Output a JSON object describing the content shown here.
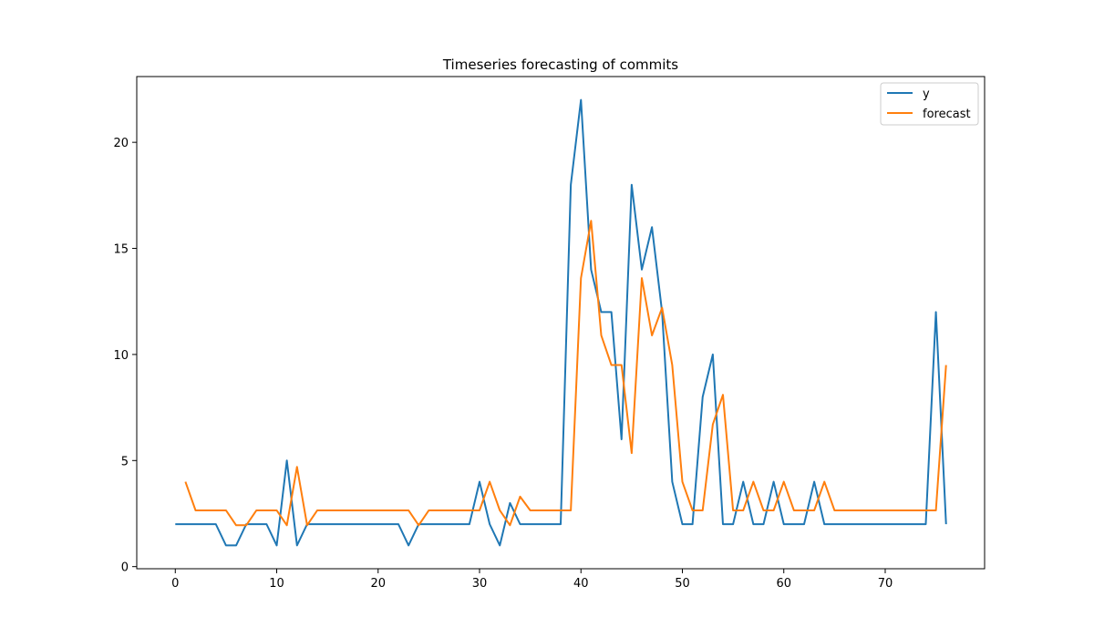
{
  "chart_data": {
    "type": "line",
    "title": "Timeseries forecasting of commits",
    "xlabel": "",
    "ylabel": "",
    "xlim": [
      -3.8,
      79.8
    ],
    "ylim": [
      -0.1,
      23.1
    ],
    "xticks": [
      0,
      10,
      20,
      30,
      40,
      50,
      60,
      70
    ],
    "yticks": [
      0,
      5,
      10,
      15,
      20
    ],
    "grid": false,
    "legend": "top-right",
    "series": [
      {
        "name": "y",
        "color": "#1f77b4",
        "x": [
          0,
          1,
          2,
          3,
          4,
          5,
          6,
          7,
          8,
          9,
          10,
          11,
          12,
          13,
          14,
          15,
          16,
          17,
          18,
          19,
          20,
          21,
          22,
          23,
          24,
          25,
          26,
          27,
          28,
          29,
          30,
          31,
          32,
          33,
          34,
          35,
          36,
          37,
          38,
          39,
          40,
          41,
          42,
          43,
          44,
          45,
          46,
          47,
          48,
          49,
          50,
          51,
          52,
          53,
          54,
          55,
          56,
          57,
          58,
          59,
          60,
          61,
          62,
          63,
          64,
          65,
          66,
          67,
          68,
          69,
          70,
          71,
          72,
          73,
          74,
          75,
          76
        ],
        "values": [
          2,
          2,
          2,
          2,
          2,
          1,
          1,
          2,
          2,
          2,
          1,
          5,
          1,
          2,
          2,
          2,
          2,
          2,
          2,
          2,
          2,
          2,
          2,
          1,
          2,
          2,
          2,
          2,
          2,
          2,
          4,
          2,
          1,
          3,
          2,
          2,
          2,
          2,
          2,
          18,
          22,
          14,
          12,
          12,
          6,
          18,
          14,
          16,
          12,
          4,
          2,
          2,
          8,
          10,
          2,
          2,
          4,
          2,
          2,
          4,
          2,
          2,
          2,
          4,
          2,
          2,
          2,
          2,
          2,
          2,
          2,
          2,
          2,
          2,
          2,
          12,
          2
        ]
      },
      {
        "name": "forecast",
        "color": "#ff7f0e",
        "x": [
          1,
          2,
          3,
          4,
          5,
          6,
          7,
          8,
          9,
          10,
          11,
          12,
          13,
          14,
          15,
          16,
          17,
          18,
          19,
          20,
          21,
          22,
          23,
          24,
          25,
          26,
          27,
          28,
          29,
          30,
          31,
          32,
          33,
          34,
          35,
          36,
          37,
          38,
          39,
          40,
          41,
          42,
          43,
          44,
          45,
          46,
          47,
          48,
          49,
          50,
          51,
          52,
          53,
          54,
          55,
          56,
          57,
          58,
          59,
          60,
          61,
          62,
          63,
          64,
          65,
          66,
          67,
          68,
          69,
          70,
          71,
          72,
          73,
          74,
          75,
          76
        ],
        "values": [
          4,
          2.65,
          2.65,
          2.65,
          2.65,
          1.95,
          1.95,
          2.65,
          2.65,
          2.65,
          1.95,
          4.7,
          1.95,
          2.65,
          2.65,
          2.65,
          2.65,
          2.65,
          2.65,
          2.65,
          2.65,
          2.65,
          2.65,
          1.95,
          2.65,
          2.65,
          2.65,
          2.65,
          2.65,
          2.65,
          4,
          2.65,
          1.95,
          3.3,
          2.65,
          2.65,
          2.65,
          2.65,
          2.65,
          13.6,
          16.3,
          10.9,
          9.5,
          9.5,
          5.35,
          13.6,
          10.9,
          12.2,
          9.5,
          4,
          2.65,
          2.65,
          6.7,
          8.1,
          2.65,
          2.65,
          4,
          2.65,
          2.65,
          4,
          2.65,
          2.65,
          2.65,
          4,
          2.65,
          2.65,
          2.65,
          2.65,
          2.65,
          2.65,
          2.65,
          2.65,
          2.65,
          2.65,
          2.65,
          9.5
        ]
      }
    ]
  }
}
